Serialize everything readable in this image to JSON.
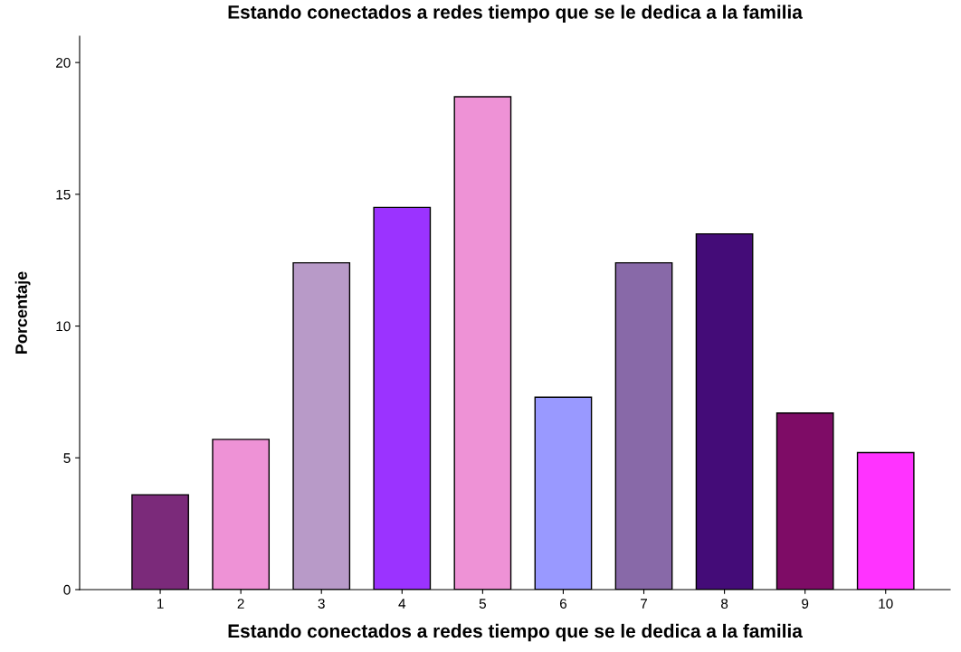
{
  "chart_data": {
    "type": "bar",
    "title": "Estando conectados a redes tiempo que se le dedica a la familia",
    "xlabel": "Estando conectados a redes tiempo que se le dedica a la familia",
    "ylabel": "Porcentaje",
    "categories": [
      "1",
      "2",
      "3",
      "4",
      "5",
      "6",
      "7",
      "8",
      "9",
      "10"
    ],
    "values": [
      3.6,
      5.7,
      12.4,
      14.5,
      18.7,
      7.3,
      12.4,
      13.5,
      6.7,
      5.2
    ],
    "colors": [
      "#7b2a7a",
      "#ee92d6",
      "#b89ac8",
      "#9b33ff",
      "#ee92d6",
      "#9999ff",
      "#8869a8",
      "#440c78",
      "#7e0c66",
      "#ff33ff"
    ],
    "ylim": [
      0,
      21
    ],
    "yticks": [
      0,
      5,
      10,
      15,
      20
    ],
    "grid": false,
    "legend": false
  }
}
